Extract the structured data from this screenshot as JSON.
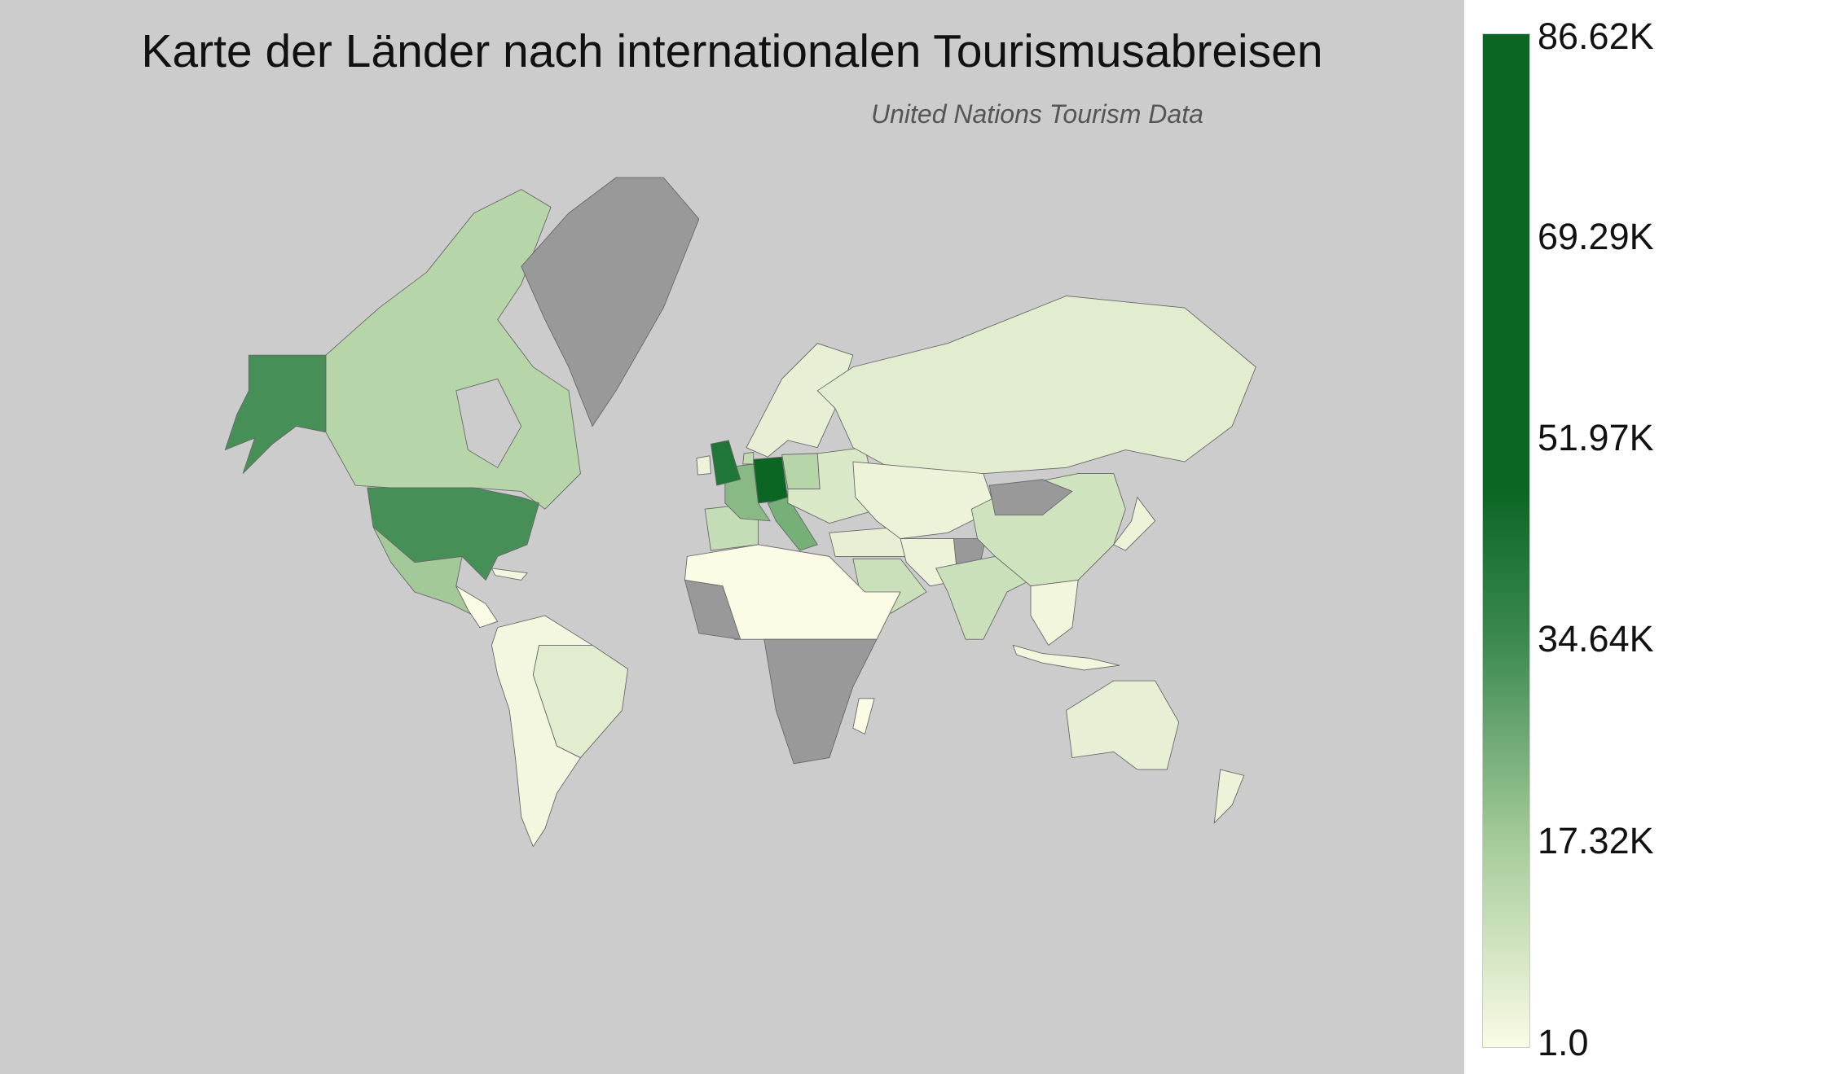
{
  "chart_data": {
    "type": "choropleth",
    "title": "Karte der Länder nach internationalen Tourismusabreisen",
    "subtitle": "United Nations Tourism Data",
    "colorscale": [
      "#fbfbe6",
      "#a6cc9a",
      "#3c8a50",
      "#0b6623"
    ],
    "no_data_color": "#999999",
    "background_color": "#cccccc",
    "range": [
      1.0,
      86620
    ],
    "colorbar_ticks": [
      "86.62K",
      "69.29K",
      "51.97K",
      "34.64K",
      "17.32K",
      "1.0"
    ],
    "countries": [
      {
        "name": "Germany",
        "value": 86620
      },
      {
        "name": "United Kingdom",
        "value": 42000
      },
      {
        "name": "United States",
        "value": 33000
      },
      {
        "name": "Italy",
        "value": 25000
      },
      {
        "name": "France",
        "value": 22000
      },
      {
        "name": "Mexico",
        "value": 18000
      },
      {
        "name": "Canada",
        "value": 14000
      },
      {
        "name": "Poland",
        "value": 14000
      },
      {
        "name": "Netherlands",
        "value": 12000
      },
      {
        "name": "Spain",
        "value": 11000
      },
      {
        "name": "India",
        "value": 10000
      },
      {
        "name": "Saudi Arabia",
        "value": 10000
      },
      {
        "name": "China",
        "value": 9000
      },
      {
        "name": "Ireland",
        "value": 3000
      },
      {
        "name": "Eastern Europe",
        "value": 7000
      },
      {
        "name": "Russia",
        "value": 5000
      },
      {
        "name": "Sweden/Norway/Finland",
        "value": 4000
      },
      {
        "name": "Turkey",
        "value": 4000
      },
      {
        "name": "Brazil",
        "value": 5000
      },
      {
        "name": "South America (other)",
        "value": 1500
      },
      {
        "name": "Kazakhstan",
        "value": 3000
      },
      {
        "name": "Iran",
        "value": 3000
      },
      {
        "name": "Japan",
        "value": 3000
      },
      {
        "name": "Southeast Asia",
        "value": 2000
      },
      {
        "name": "Indonesia",
        "value": 2000
      },
      {
        "name": "Australia",
        "value": 4000
      },
      {
        "name": "New Zealand",
        "value": 3000
      },
      {
        "name": "North Africa",
        "value": 1
      },
      {
        "name": "Central America",
        "value": 1
      },
      {
        "name": "Cuba",
        "value": 2000
      },
      {
        "name": "Madagascar",
        "value": 1
      },
      {
        "name": "Greenland",
        "value": null
      },
      {
        "name": "Mongolia",
        "value": null
      },
      {
        "name": "Afghanistan",
        "value": null
      },
      {
        "name": "West Africa",
        "value": null
      },
      {
        "name": "Central and Southern Africa",
        "value": null
      }
    ]
  }
}
